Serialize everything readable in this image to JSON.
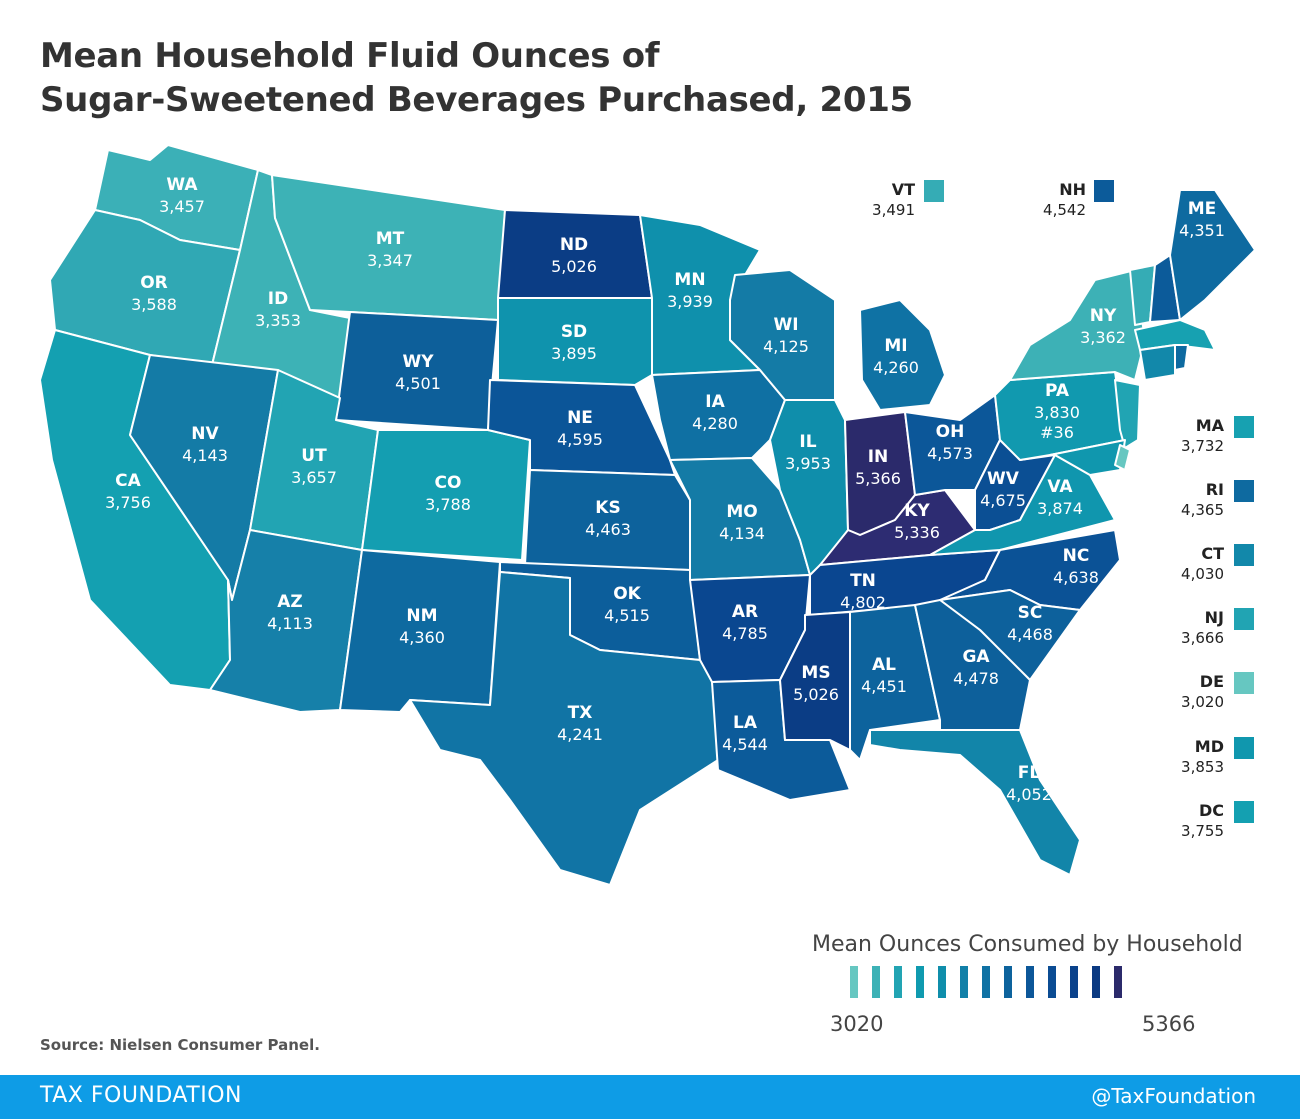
{
  "title": {
    "line1": "Mean Household Fluid Ounces of",
    "line2": "Sugar-Sweetened Beverages Purchased, 2015"
  },
  "states": {
    "WA": {
      "abbr": "WA",
      "value": "3,457",
      "color": "#3bb0b7"
    },
    "OR": {
      "abbr": "OR",
      "value": "3,588",
      "color": "#30a8b4"
    },
    "CA": {
      "abbr": "CA",
      "value": "3,756",
      "color": "#14a0b1"
    },
    "ID": {
      "abbr": "ID",
      "value": "3,353",
      "color": "#3db2b6"
    },
    "NV": {
      "abbr": "NV",
      "value": "4,143",
      "color": "#147ba6"
    },
    "MT": {
      "abbr": "MT",
      "value": "3,347",
      "color": "#3db2b6"
    },
    "WY": {
      "abbr": "WY",
      "value": "4,501",
      "color": "#0d5f9a"
    },
    "UT": {
      "abbr": "UT",
      "value": "3,657",
      "color": "#22a4b3"
    },
    "AZ": {
      "abbr": "AZ",
      "value": "4,113",
      "color": "#1680a9"
    },
    "CO": {
      "abbr": "CO",
      "value": "3,788",
      "color": "#149eb1"
    },
    "NM": {
      "abbr": "NM",
      "value": "4,360",
      "color": "#0e6aa0"
    },
    "ND": {
      "abbr": "ND",
      "value": "5,026",
      "color": "#0b3d85"
    },
    "SD": {
      "abbr": "SD",
      "value": "3,895",
      "color": "#0f93ad"
    },
    "NE": {
      "abbr": "NE",
      "value": "4,595",
      "color": "#0b5598"
    },
    "KS": {
      "abbr": "KS",
      "value": "4,463",
      "color": "#0d629c"
    },
    "OK": {
      "abbr": "OK",
      "value": "4,515",
      "color": "#0c5e9b"
    },
    "TX": {
      "abbr": "TX",
      "value": "4,241",
      "color": "#1174a5"
    },
    "MN": {
      "abbr": "MN",
      "value": "3,939",
      "color": "#0f90ac"
    },
    "IA": {
      "abbr": "IA",
      "value": "4,280",
      "color": "#0f70a3"
    },
    "MO": {
      "abbr": "MO",
      "value": "4,134",
      "color": "#147ba6"
    },
    "AR": {
      "abbr": "AR",
      "value": "4,785",
      "color": "#0a4790"
    },
    "LA": {
      "abbr": "LA",
      "value": "4,544",
      "color": "#0c5b9a"
    },
    "WI": {
      "abbr": "WI",
      "value": "4,125",
      "color": "#147ba6"
    },
    "IL": {
      "abbr": "IL",
      "value": "3,953",
      "color": "#0f8eab"
    },
    "MI": {
      "abbr": "MI",
      "value": "4,260",
      "color": "#0f72a4"
    },
    "IN": {
      "abbr": "IN",
      "value": "5,366",
      "color": "#2b2a6b"
    },
    "KY": {
      "abbr": "KY",
      "value": "5,336",
      "color": "#2d2c72"
    },
    "TN": {
      "abbr": "TN",
      "value": "4,802",
      "color": "#0a4690"
    },
    "MS": {
      "abbr": "MS",
      "value": "5,026",
      "color": "#0b3d85"
    },
    "AL": {
      "abbr": "AL",
      "value": "4,451",
      "color": "#0d639d"
    },
    "OH": {
      "abbr": "OH",
      "value": "4,573",
      "color": "#0c5799"
    },
    "WV": {
      "abbr": "WV",
      "value": "4,675",
      "color": "#0b4f94"
    },
    "VA": {
      "abbr": "VA",
      "value": "3,874",
      "color": "#1096ae"
    },
    "NC": {
      "abbr": "NC",
      "value": "4,638",
      "color": "#0b5296"
    },
    "SC": {
      "abbr": "SC",
      "value": "4,468",
      "color": "#0d619c"
    },
    "GA": {
      "abbr": "GA",
      "value": "4,478",
      "color": "#0d609b"
    },
    "FL": {
      "abbr": "FL",
      "value": "4,052",
      "color": "#1285a9"
    },
    "PA": {
      "abbr": "PA",
      "value": "3,830",
      "rank": "#36",
      "color": "#1199af"
    },
    "NY": {
      "abbr": "NY",
      "value": "3,362",
      "color": "#3db1b6"
    },
    "ME": {
      "abbr": "ME",
      "value": "4,351",
      "color": "#0e6aa0"
    },
    "VT": {
      "abbr": "VT",
      "value": "3,491",
      "color": "#35acb5"
    },
    "NH": {
      "abbr": "NH",
      "value": "4,542",
      "color": "#0c5b9a"
    },
    "MA": {
      "abbr": "MA",
      "value": "3,732",
      "color": "#17a1b1"
    },
    "RI": {
      "abbr": "RI",
      "value": "4,365",
      "color": "#0e6aa0"
    },
    "CT": {
      "abbr": "CT",
      "value": "4,030",
      "color": "#1288aa"
    },
    "NJ": {
      "abbr": "NJ",
      "value": "3,666",
      "color": "#21a4b3"
    },
    "DE": {
      "abbr": "DE",
      "value": "3,020",
      "color": "#66c7c1"
    },
    "MD": {
      "abbr": "MD",
      "value": "3,853",
      "color": "#1097ae"
    },
    "DC": {
      "abbr": "DC",
      "value": "3,755",
      "color": "#14a0b1"
    }
  },
  "legend": {
    "title": "Mean Ounces Consumed by Household",
    "min": "3020",
    "max": "5366",
    "colors": [
      "#66c7c1",
      "#3db2b6",
      "#22a4b3",
      "#0f9aaf",
      "#0f8eab",
      "#1280a8",
      "#0f72a4",
      "#0d639d",
      "#0c5799",
      "#0b4c93",
      "#0a428b",
      "#0b3a82",
      "#2b2a6b"
    ]
  },
  "source": "Source: Nielsen Consumer Panel.",
  "footer": {
    "brand": "TAX FOUNDATION",
    "handle": "@TaxFoundation"
  }
}
